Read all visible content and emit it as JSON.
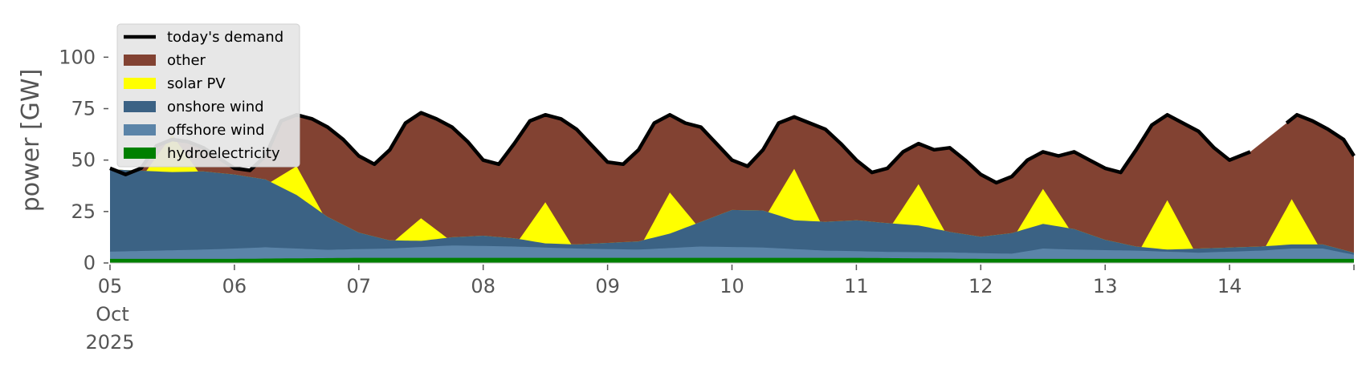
{
  "chart_data": {
    "type": "area",
    "title": "",
    "xlabel": "",
    "ylabel": "power [GW]",
    "ylim": [
      0,
      120
    ],
    "yticks": [
      0,
      25,
      50,
      75,
      100
    ],
    "xlim": [
      "2025-10-05",
      "2025-10-15"
    ],
    "xticks": [
      {
        "date": "2025-10-05",
        "label": "05",
        "sublabel_1": "Oct",
        "sublabel_2": "2025"
      },
      {
        "date": "2025-10-06",
        "label": "06"
      },
      {
        "date": "2025-10-07",
        "label": "07"
      },
      {
        "date": "2025-10-08",
        "label": "08"
      },
      {
        "date": "2025-10-09",
        "label": "09"
      },
      {
        "date": "2025-10-10",
        "label": "10"
      },
      {
        "date": "2025-10-11",
        "label": "11"
      },
      {
        "date": "2025-10-12",
        "label": "12"
      },
      {
        "date": "2025-10-13",
        "label": "13"
      },
      {
        "date": "2025-10-14",
        "label": "14"
      }
    ],
    "grid": false,
    "legend_position": "top-left",
    "series": [
      {
        "name": "hydroelectricity",
        "kind": "area",
        "color": "#008000",
        "points": [
          [
            "2025-10-05T00:00",
            2
          ],
          [
            "2025-10-06T00:00",
            2
          ],
          [
            "2025-10-07T00:00",
            2.5
          ],
          [
            "2025-10-08T00:00",
            2.5
          ],
          [
            "2025-10-09T00:00",
            2.5
          ],
          [
            "2025-10-10T00:00",
            2.5
          ],
          [
            "2025-10-11T00:00",
            2.5
          ],
          [
            "2025-10-12T00:00",
            2
          ],
          [
            "2025-10-13T00:00",
            2
          ],
          [
            "2025-10-14T00:00",
            2
          ],
          [
            "2025-10-14T12:00",
            2
          ],
          [
            "2025-10-15T00:00",
            2
          ]
        ]
      },
      {
        "name": "offshore wind",
        "kind": "area",
        "color": "#5b84a8",
        "points": [
          [
            "2025-10-05T00:00",
            3.5
          ],
          [
            "2025-10-05T18:00",
            4.5
          ],
          [
            "2025-10-06T06:00",
            5.5
          ],
          [
            "2025-10-06T18:00",
            4
          ],
          [
            "2025-10-07T06:00",
            4.5
          ],
          [
            "2025-10-07T18:00",
            6
          ],
          [
            "2025-10-08T06:00",
            5.5
          ],
          [
            "2025-10-08T18:00",
            4.5
          ],
          [
            "2025-10-09T06:00",
            4
          ],
          [
            "2025-10-09T18:00",
            5.5
          ],
          [
            "2025-10-10T06:00",
            5
          ],
          [
            "2025-10-10T18:00",
            3.5
          ],
          [
            "2025-10-11T06:00",
            3
          ],
          [
            "2025-10-11T18:00",
            3
          ],
          [
            "2025-10-12T06:00",
            2.5
          ],
          [
            "2025-10-12T12:00",
            5
          ],
          [
            "2025-10-12T18:00",
            4.5
          ],
          [
            "2025-10-13T06:00",
            4
          ],
          [
            "2025-10-13T18:00",
            3
          ],
          [
            "2025-10-14T06:00",
            4
          ],
          [
            "2025-10-14T12:00",
            5
          ],
          [
            "2025-10-14T18:00",
            5
          ],
          [
            "2025-10-15T00:00",
            2
          ]
        ]
      },
      {
        "name": "onshore wind",
        "kind": "area",
        "color": "#3b6284",
        "points": [
          [
            "2025-10-05T00:00",
            40
          ],
          [
            "2025-10-05T06:00",
            39
          ],
          [
            "2025-10-05T12:00",
            38
          ],
          [
            "2025-10-05T18:00",
            38
          ],
          [
            "2025-10-06T00:00",
            36
          ],
          [
            "2025-10-06T06:00",
            33
          ],
          [
            "2025-10-06T12:00",
            26
          ],
          [
            "2025-10-06T18:00",
            16
          ],
          [
            "2025-10-07T00:00",
            8
          ],
          [
            "2025-10-07T06:00",
            4
          ],
          [
            "2025-10-07T12:00",
            3
          ],
          [
            "2025-10-07T18:00",
            4
          ],
          [
            "2025-10-08T00:00",
            5
          ],
          [
            "2025-10-08T06:00",
            4
          ],
          [
            "2025-10-08T12:00",
            2
          ],
          [
            "2025-10-08T18:00",
            2
          ],
          [
            "2025-10-09T00:00",
            3
          ],
          [
            "2025-10-09T06:00",
            4
          ],
          [
            "2025-10-09T12:00",
            7
          ],
          [
            "2025-10-09T18:00",
            12
          ],
          [
            "2025-10-10T00:00",
            18
          ],
          [
            "2025-10-10T06:00",
            18
          ],
          [
            "2025-10-10T12:00",
            14
          ],
          [
            "2025-10-10T18:00",
            14
          ],
          [
            "2025-10-11T00:00",
            15
          ],
          [
            "2025-10-11T06:00",
            14
          ],
          [
            "2025-10-11T12:00",
            13
          ],
          [
            "2025-10-11T18:00",
            10
          ],
          [
            "2025-10-12T00:00",
            8
          ],
          [
            "2025-10-12T06:00",
            10
          ],
          [
            "2025-10-12T12:00",
            12
          ],
          [
            "2025-10-12T18:00",
            10
          ],
          [
            "2025-10-13T00:00",
            5
          ],
          [
            "2025-10-13T06:00",
            2
          ],
          [
            "2025-10-13T12:00",
            1
          ],
          [
            "2025-10-13T18:00",
            2
          ],
          [
            "2025-10-14T00:00",
            2
          ],
          [
            "2025-10-14T06:00",
            2
          ],
          [
            "2025-10-14T12:00",
            2
          ],
          [
            "2025-10-14T18:00",
            2
          ],
          [
            "2025-10-15T00:00",
            1
          ]
        ]
      },
      {
        "name": "solar PV",
        "kind": "area",
        "color": "#ffff00",
        "points": [
          [
            "2025-10-05T07:00",
            0
          ],
          [
            "2025-10-05T12:00",
            18
          ],
          [
            "2025-10-05T17:00",
            0
          ],
          [
            "2025-10-06T07:00",
            0
          ],
          [
            "2025-10-06T12:00",
            14
          ],
          [
            "2025-10-06T17:00",
            0
          ],
          [
            "2025-10-07T07:00",
            0
          ],
          [
            "2025-10-07T12:00",
            11
          ],
          [
            "2025-10-07T17:00",
            0
          ],
          [
            "2025-10-08T07:00",
            0
          ],
          [
            "2025-10-08T12:00",
            20
          ],
          [
            "2025-10-08T17:00",
            0
          ],
          [
            "2025-10-09T07:00",
            0
          ],
          [
            "2025-10-09T12:00",
            20
          ],
          [
            "2025-10-09T17:00",
            0
          ],
          [
            "2025-10-10T07:00",
            0
          ],
          [
            "2025-10-10T12:00",
            25
          ],
          [
            "2025-10-10T17:00",
            0
          ],
          [
            "2025-10-11T07:00",
            0
          ],
          [
            "2025-10-11T12:00",
            20
          ],
          [
            "2025-10-11T17:00",
            0
          ],
          [
            "2025-10-12T07:00",
            0
          ],
          [
            "2025-10-12T12:00",
            17
          ],
          [
            "2025-10-12T17:00",
            0
          ],
          [
            "2025-10-13T07:00",
            0
          ],
          [
            "2025-10-13T12:00",
            24
          ],
          [
            "2025-10-13T17:00",
            0
          ],
          [
            "2025-10-14T07:00",
            0
          ],
          [
            "2025-10-14T12:00",
            22
          ],
          [
            "2025-10-14T17:00",
            0
          ]
        ]
      },
      {
        "name": "other",
        "kind": "area",
        "color": "#824232",
        "fills_to": "today's demand"
      },
      {
        "name": "today's demand",
        "kind": "line",
        "color": "#000000",
        "gap": [
          "2025-10-14T05:00",
          "2025-10-14T10:00"
        ],
        "points": [
          [
            "2025-10-05T00:00",
            46
          ],
          [
            "2025-10-05T03:00",
            43
          ],
          [
            "2025-10-05T06:00",
            46
          ],
          [
            "2025-10-05T09:00",
            57
          ],
          [
            "2025-10-05T12:00",
            60
          ],
          [
            "2025-10-05T15:00",
            59
          ],
          [
            "2025-10-05T18:00",
            56
          ],
          [
            "2025-10-05T21:00",
            51
          ],
          [
            "2025-10-06T00:00",
            46
          ],
          [
            "2025-10-06T03:00",
            45
          ],
          [
            "2025-10-06T06:00",
            52
          ],
          [
            "2025-10-06T09:00",
            69
          ],
          [
            "2025-10-06T12:00",
            72
          ],
          [
            "2025-10-06T15:00",
            70
          ],
          [
            "2025-10-06T18:00",
            66
          ],
          [
            "2025-10-06T21:00",
            60
          ],
          [
            "2025-10-07T00:00",
            52
          ],
          [
            "2025-10-07T03:00",
            48
          ],
          [
            "2025-10-07T06:00",
            55
          ],
          [
            "2025-10-07T09:00",
            68
          ],
          [
            "2025-10-07T12:00",
            73
          ],
          [
            "2025-10-07T15:00",
            70
          ],
          [
            "2025-10-07T18:00",
            66
          ],
          [
            "2025-10-07T21:00",
            59
          ],
          [
            "2025-10-08T00:00",
            50
          ],
          [
            "2025-10-08T03:00",
            48
          ],
          [
            "2025-10-08T06:00",
            58
          ],
          [
            "2025-10-08T09:00",
            69
          ],
          [
            "2025-10-08T12:00",
            72
          ],
          [
            "2025-10-08T15:00",
            70
          ],
          [
            "2025-10-08T18:00",
            65
          ],
          [
            "2025-10-08T21:00",
            57
          ],
          [
            "2025-10-09T00:00",
            49
          ],
          [
            "2025-10-09T03:00",
            48
          ],
          [
            "2025-10-09T06:00",
            55
          ],
          [
            "2025-10-09T09:00",
            68
          ],
          [
            "2025-10-09T12:00",
            72
          ],
          [
            "2025-10-09T15:00",
            68
          ],
          [
            "2025-10-09T18:00",
            66
          ],
          [
            "2025-10-09T21:00",
            58
          ],
          [
            "2025-10-10T00:00",
            50
          ],
          [
            "2025-10-10T03:00",
            47
          ],
          [
            "2025-10-10T06:00",
            55
          ],
          [
            "2025-10-10T09:00",
            68
          ],
          [
            "2025-10-10T12:00",
            71
          ],
          [
            "2025-10-10T15:00",
            68
          ],
          [
            "2025-10-10T18:00",
            65
          ],
          [
            "2025-10-10T21:00",
            58
          ],
          [
            "2025-10-11T00:00",
            50
          ],
          [
            "2025-10-11T03:00",
            44
          ],
          [
            "2025-10-11T06:00",
            46
          ],
          [
            "2025-10-11T09:00",
            54
          ],
          [
            "2025-10-11T12:00",
            58
          ],
          [
            "2025-10-11T15:00",
            55
          ],
          [
            "2025-10-11T18:00",
            56
          ],
          [
            "2025-10-11T21:00",
            50
          ],
          [
            "2025-10-12T00:00",
            43
          ],
          [
            "2025-10-12T03:00",
            39
          ],
          [
            "2025-10-12T06:00",
            42
          ],
          [
            "2025-10-12T09:00",
            50
          ],
          [
            "2025-10-12T12:00",
            54
          ],
          [
            "2025-10-12T15:00",
            52
          ],
          [
            "2025-10-12T18:00",
            54
          ],
          [
            "2025-10-12T21:00",
            50
          ],
          [
            "2025-10-13T00:00",
            46
          ],
          [
            "2025-10-13T03:00",
            44
          ],
          [
            "2025-10-13T06:00",
            55
          ],
          [
            "2025-10-13T09:00",
            67
          ],
          [
            "2025-10-13T12:00",
            72
          ],
          [
            "2025-10-13T15:00",
            68
          ],
          [
            "2025-10-13T18:00",
            64
          ],
          [
            "2025-10-13T21:00",
            56
          ],
          [
            "2025-10-14T00:00",
            50
          ],
          [
            "2025-10-14T04:00",
            54
          ],
          [
            "2025-10-14T11:00",
            68
          ],
          [
            "2025-10-14T13:00",
            72
          ],
          [
            "2025-10-14T16:00",
            69
          ],
          [
            "2025-10-14T19:00",
            65
          ],
          [
            "2025-10-14T22:00",
            60
          ],
          [
            "2025-10-15T00:00",
            52
          ]
        ]
      }
    ],
    "legend": [
      {
        "label": "today's demand",
        "kind": "line",
        "color": "#000000"
      },
      {
        "label": "other",
        "kind": "patch",
        "color": "#824232"
      },
      {
        "label": "solar PV",
        "kind": "patch",
        "color": "#ffff00"
      },
      {
        "label": "onshore wind",
        "kind": "patch",
        "color": "#3b6284"
      },
      {
        "label": "offshore wind",
        "kind": "patch",
        "color": "#5b84a8"
      },
      {
        "label": "hydroelectricity",
        "kind": "patch",
        "color": "#008000"
      }
    ]
  }
}
